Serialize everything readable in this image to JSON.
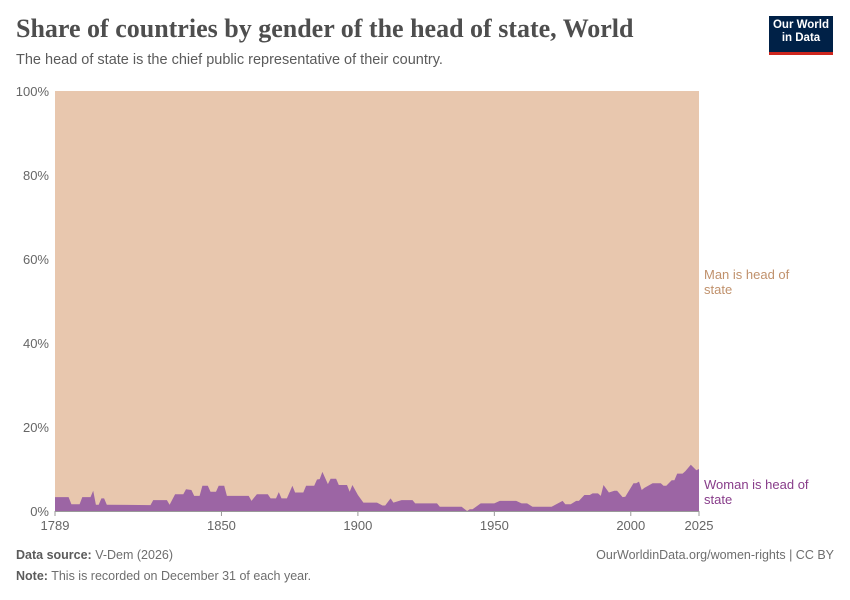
{
  "header": {
    "title": "Share of countries by gender of the head of state, World",
    "subtitle": "The head of state is the chief public representative of their country.",
    "logo_line1": "Our World",
    "logo_line2": "in Data"
  },
  "footer": {
    "source_label": "Data source:",
    "source": "V-Dem (2026)",
    "url": "OurWorldinData.org/women-rights | CC BY",
    "note_label": "Note:",
    "note": "This is recorded on December 31 of each year."
  },
  "chart_data": {
    "type": "area",
    "stacked": true,
    "xlim": [
      1789,
      2025
    ],
    "ylim": [
      0,
      100
    ],
    "x_ticks": [
      "1789",
      "1850",
      "1900",
      "1950",
      "2000",
      "2025"
    ],
    "y_ticks": [
      "0%",
      "20%",
      "40%",
      "60%",
      "80%",
      "100%"
    ],
    "grid": false,
    "colors": {
      "man": "#e8c7ae",
      "woman": "#9c65a4",
      "man_label": "#c0916c",
      "woman_label": "#883d8a"
    },
    "series": [
      {
        "name": "Woman is head of state",
        "values": [
          [
            1789,
            3.3
          ],
          [
            1794,
            3.3
          ],
          [
            1795,
            1.6
          ],
          [
            1798,
            1.6
          ],
          [
            1799,
            3.3
          ],
          [
            1802,
            3.3
          ],
          [
            1803,
            4.8
          ],
          [
            1804,
            1.5
          ],
          [
            1805,
            1.5
          ],
          [
            1806,
            3
          ],
          [
            1807,
            3
          ],
          [
            1808,
            1.5
          ],
          [
            1824,
            1.4
          ],
          [
            1825,
            2.6
          ],
          [
            1830,
            2.6
          ],
          [
            1831,
            1.5
          ],
          [
            1833,
            4
          ],
          [
            1836,
            4
          ],
          [
            1837,
            5.2
          ],
          [
            1839,
            5
          ],
          [
            1840,
            3.6
          ],
          [
            1842,
            3.6
          ],
          [
            1843,
            6
          ],
          [
            1845,
            6
          ],
          [
            1846,
            4.6
          ],
          [
            1848,
            4.6
          ],
          [
            1849,
            6
          ],
          [
            1851,
            6
          ],
          [
            1852,
            3.6
          ],
          [
            1860,
            3.6
          ],
          [
            1861,
            2.4
          ],
          [
            1863,
            4
          ],
          [
            1867,
            4
          ],
          [
            1868,
            3
          ],
          [
            1870,
            3
          ],
          [
            1871,
            4.5
          ],
          [
            1872,
            3
          ],
          [
            1874,
            3
          ],
          [
            1876,
            6
          ],
          [
            1877,
            4.4
          ],
          [
            1880,
            4.4
          ],
          [
            1881,
            6
          ],
          [
            1884,
            6
          ],
          [
            1885,
            7.5
          ],
          [
            1886,
            7.6
          ],
          [
            1887,
            9.3
          ],
          [
            1889,
            6.4
          ],
          [
            1890,
            7.7
          ],
          [
            1892,
            7.7
          ],
          [
            1893,
            6.2
          ],
          [
            1896,
            6.2
          ],
          [
            1897,
            4.6
          ],
          [
            1898,
            6.2
          ],
          [
            1900,
            3.8
          ],
          [
            1902,
            2
          ],
          [
            1907,
            2
          ],
          [
            1909,
            1.3
          ],
          [
            1910,
            1.3
          ],
          [
            1912,
            3
          ],
          [
            1913,
            2
          ],
          [
            1916,
            2.6
          ],
          [
            1920,
            2.6
          ],
          [
            1921,
            1.8
          ],
          [
            1929,
            1.8
          ],
          [
            1930,
            1
          ],
          [
            1938,
            1
          ],
          [
            1940,
            0
          ],
          [
            1941,
            0.4
          ],
          [
            1942,
            0.4
          ],
          [
            1945,
            1.8
          ],
          [
            1950,
            1.8
          ],
          [
            1952,
            2.4
          ],
          [
            1958,
            2.4
          ],
          [
            1960,
            1.8
          ],
          [
            1962,
            1.8
          ],
          [
            1964,
            1
          ],
          [
            1971,
            1
          ],
          [
            1975,
            2.4
          ],
          [
            1976,
            1.6
          ],
          [
            1978,
            1.6
          ],
          [
            1980,
            2.4
          ],
          [
            1981,
            2.4
          ],
          [
            1983,
            3.8
          ],
          [
            1985,
            3.8
          ],
          [
            1986,
            4.2
          ],
          [
            1988,
            4.2
          ],
          [
            1989,
            3.6
          ],
          [
            1990,
            6.2
          ],
          [
            1992,
            4.4
          ],
          [
            1994,
            4.8
          ],
          [
            1995,
            4.8
          ],
          [
            1997,
            3.3
          ],
          [
            1998,
            3.4
          ],
          [
            2001,
            6.6
          ],
          [
            2002,
            6.6
          ],
          [
            2003,
            7
          ],
          [
            2004,
            5
          ],
          [
            2005,
            5.5
          ],
          [
            2008,
            6.6
          ],
          [
            2011,
            6.6
          ],
          [
            2012,
            6
          ],
          [
            2013,
            6
          ],
          [
            2015,
            7.3
          ],
          [
            2016,
            7.3
          ],
          [
            2017,
            8.9
          ],
          [
            2019,
            8.9
          ],
          [
            2020,
            9.5
          ],
          [
            2022,
            11
          ],
          [
            2024,
            9.7
          ],
          [
            2025,
            10
          ]
        ]
      },
      {
        "name": "Man is head of state",
        "values": "remainder to 100%"
      }
    ],
    "labels": {
      "man": [
        "Man is head of",
        "state"
      ],
      "woman": [
        "Woman is head of",
        "state"
      ]
    }
  }
}
